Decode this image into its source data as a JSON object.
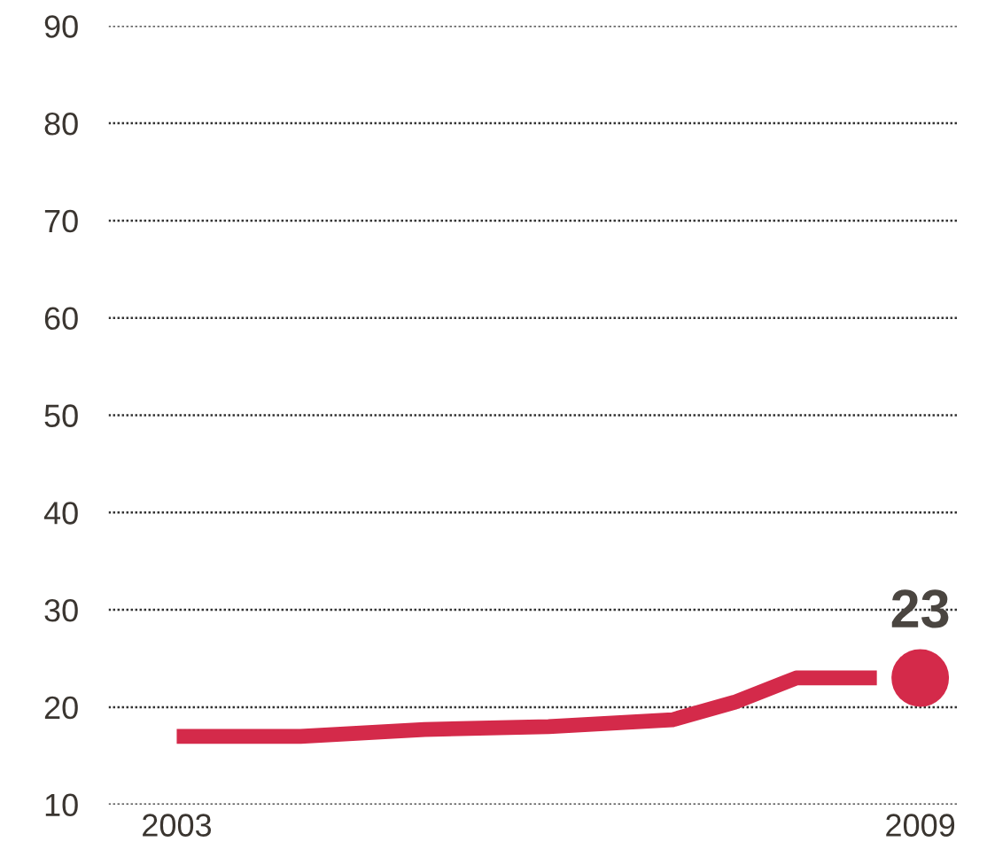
{
  "chart_data": {
    "type": "line",
    "xlim": [
      2002.45,
      2009.3
    ],
    "xticks": [
      2003,
      2009
    ],
    "ylim": [
      10,
      90
    ],
    "yticks": [
      10,
      20,
      30,
      40,
      50,
      60,
      70,
      80,
      90
    ],
    "grid": "y",
    "legend": false,
    "series": [
      {
        "color": "#d42a4a",
        "x": [
          2003,
          2004,
          2005,
          2006,
          2007,
          2007.5,
          2008,
          2008.65
        ],
        "values": [
          17,
          17,
          17.7,
          18,
          18.7,
          20.5,
          23,
          23
        ]
      },
      {
        "type": "scatter",
        "color": "#d42a4a",
        "x": [
          2009
        ],
        "values": [
          23
        ],
        "value_labels": [
          "23"
        ]
      }
    ]
  }
}
